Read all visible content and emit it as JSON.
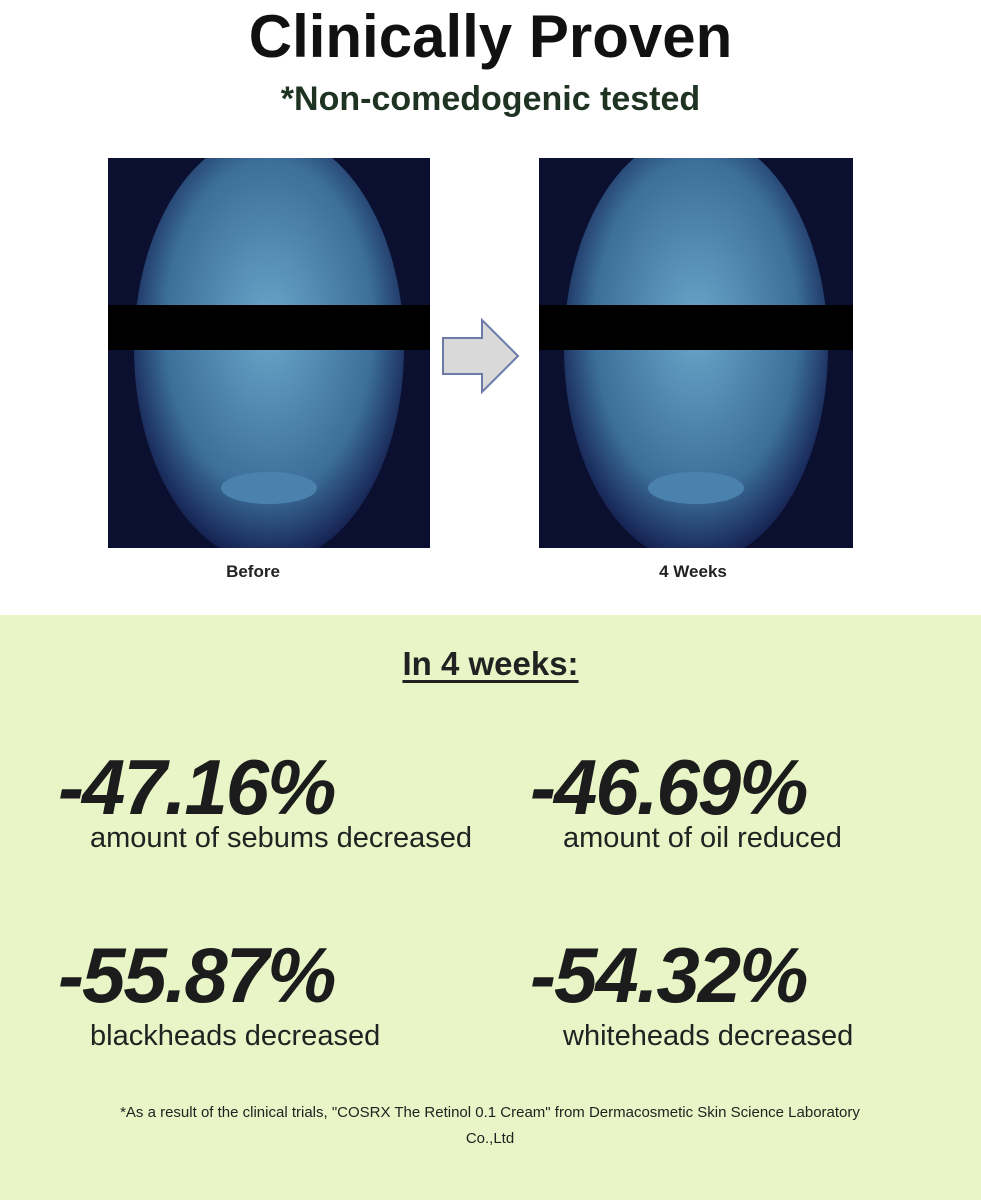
{
  "header": {
    "title": "Clinically Proven",
    "subtitle": "*Non-comedogenic tested"
  },
  "photos": [
    {
      "label": "Before"
    },
    {
      "label": "4 Weeks"
    }
  ],
  "results": {
    "heading": "In 4 weeks:",
    "stats": [
      {
        "value": "-47.16%",
        "label": "amount of sebums decreased"
      },
      {
        "value": "-46.69%",
        "label": "amount of oil reduced"
      },
      {
        "value": "-55.87%",
        "label": "blackheads decreased"
      },
      {
        "value": "-54.32%",
        "label": "whiteheads decreased"
      }
    ]
  },
  "footnote": "*As a result of the clinical trials, \"COSRX The Retinol 0.1 Cream\" from Dermacosmetic Skin Science Laboratory Co.,Ltd"
}
